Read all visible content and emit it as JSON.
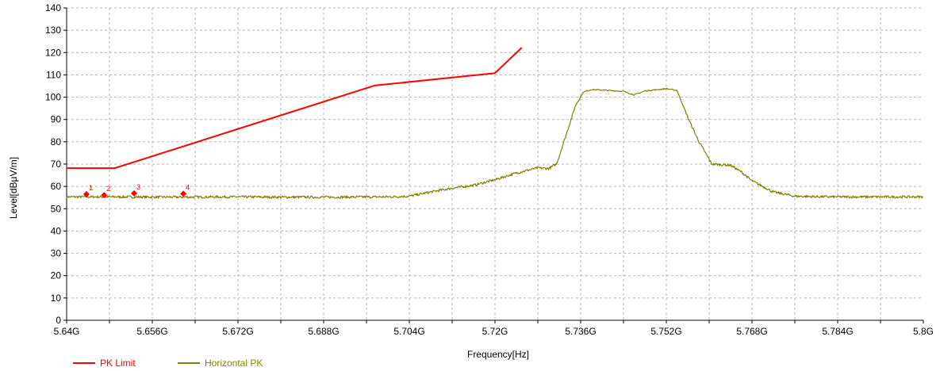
{
  "chart_data": {
    "type": "line",
    "xlabel": "Frequency[Hz]",
    "ylabel": "Level[dBμV/m]",
    "xlim": [
      5.64,
      5.8
    ],
    "ylim": [
      0,
      140
    ],
    "grid": true,
    "legend_position": "bottom-left",
    "x_ticks": [
      5.64,
      5.648,
      5.656,
      5.664,
      5.672,
      5.68,
      5.688,
      5.696,
      5.704,
      5.712,
      5.72,
      5.728,
      5.736,
      5.744,
      5.752,
      5.76,
      5.768,
      5.776,
      5.784,
      5.792,
      5.8
    ],
    "x_tick_labels": [
      "5.64G",
      "",
      "5.656G",
      "",
      "5.672G",
      "",
      "5.688G",
      "",
      "5.704G",
      "",
      "5.72G",
      "",
      "5.736G",
      "",
      "5.752G",
      "",
      "5.768G",
      "",
      "5.784G",
      "",
      "5.8G"
    ],
    "y_ticks": [
      0,
      10,
      20,
      30,
      40,
      50,
      60,
      70,
      80,
      90,
      100,
      110,
      120,
      130,
      140
    ],
    "series": [
      {
        "name": "PK Limit",
        "color": "#ff0000",
        "x": [
          5.64,
          5.649,
          5.6975,
          5.72,
          5.725
        ],
        "y": [
          68.2,
          68.2,
          105.2,
          110.8,
          122.2
        ]
      },
      {
        "name": "Horizontal PK",
        "color": "#808000",
        "x": [
          5.64,
          5.65,
          5.66,
          5.67,
          5.68,
          5.69,
          5.7,
          5.704,
          5.708,
          5.712,
          5.716,
          5.72,
          5.724,
          5.728,
          5.73,
          5.7315,
          5.733,
          5.735,
          5.7365,
          5.738,
          5.74,
          5.744,
          5.746,
          5.748,
          5.75,
          5.752,
          5.754,
          5.756,
          5.758,
          5.7605,
          5.764,
          5.766,
          5.768,
          5.772,
          5.776,
          5.78,
          5.784,
          5.79,
          5.8
        ],
        "y": [
          55.3,
          55.3,
          55.2,
          55.3,
          55.2,
          55.2,
          55.3,
          55.6,
          57.5,
          59.2,
          60.5,
          63.0,
          66.0,
          68.3,
          68.0,
          70.0,
          81.0,
          96.0,
          102.3,
          103.4,
          103.2,
          102.6,
          101.0,
          102.8,
          103.3,
          103.8,
          103.0,
          91.0,
          80.5,
          70.0,
          69.5,
          66.5,
          62.5,
          57.5,
          55.6,
          55.4,
          55.3,
          55.3,
          55.3
        ]
      }
    ],
    "markers": [
      {
        "label": "1",
        "x": 5.6437,
        "y": 56.5
      },
      {
        "label": "2",
        "x": 5.647,
        "y": 56.1
      },
      {
        "label": "3",
        "x": 5.6526,
        "y": 56.9
      },
      {
        "label": "4",
        "x": 5.6618,
        "y": 56.7
      }
    ]
  }
}
